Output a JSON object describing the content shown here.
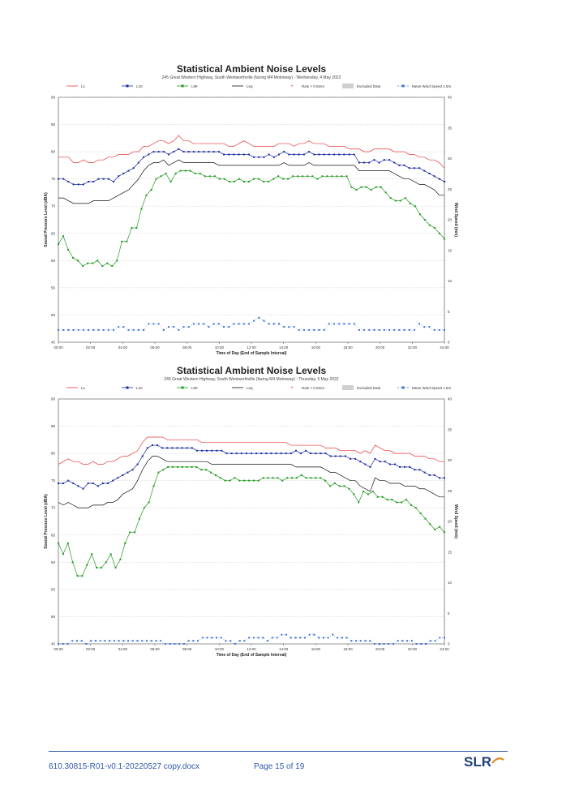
{
  "chart_data": [
    {
      "type": "line",
      "title": "Statistical Ambient Noise Levels",
      "subtitle": "245 Great Western Highway, South Wentworthville (facing M4 Motorway) - Wednesday, 4 May 2022",
      "xlabel": "Time of Day (End of Sample Interval)",
      "ylabel": "Sound Pressure Level (dBA)",
      "y2label": "Wind Speed (m/s)",
      "xticks": [
        "00:00",
        "02:00",
        "04:00",
        "06:00",
        "08:00",
        "10:00",
        "12:00",
        "14:00",
        "16:00",
        "18:00",
        "20:00",
        "22:00",
        "24:00"
      ],
      "ylim": [
        45,
        90
      ],
      "yticks": [
        45,
        50,
        55,
        60,
        65,
        70,
        75,
        80,
        85,
        90
      ],
      "y2lim": [
        0,
        40
      ],
      "y2ticks": [
        0,
        5,
        10,
        15,
        20,
        25,
        30,
        35,
        40
      ],
      "grid": true,
      "legend_position": "top",
      "legend": [
        {
          "label": "L1",
          "color": "#e8393b",
          "style": "line"
        },
        {
          "label": "L10",
          "color": "#1a2aa0",
          "style": "line-marker"
        },
        {
          "label": "L90",
          "color": "#1f9a1f",
          "style": "line-marker"
        },
        {
          "label": "Leq",
          "color": "#111111",
          "style": "line"
        },
        {
          "label": "Rain > 0.5mm",
          "color": "#e8393b",
          "style": "marker"
        },
        {
          "label": "Excluded Data",
          "color": "#cfcfcf",
          "style": "box"
        },
        {
          "label": "Mean Wind Speed 1.5m",
          "color": "#3b6fd8",
          "style": "dash-marker"
        }
      ],
      "series": [
        {
          "name": "L1",
          "color": "#e8393b",
          "values": [
            79,
            79,
            79,
            78,
            78,
            78.5,
            78,
            78,
            78.5,
            78.5,
            79,
            79,
            79.5,
            79.5,
            79.5,
            80,
            80,
            81,
            81,
            81.5,
            82,
            82,
            81.5,
            82,
            83,
            82,
            82,
            81.5,
            81.5,
            81.5,
            81.5,
            81.5,
            81.5,
            81.5,
            81,
            81,
            81.5,
            82,
            81.5,
            81,
            81,
            81,
            81,
            81,
            81.5,
            81.5,
            81.5,
            81,
            81.5,
            81.5,
            82,
            81.5,
            81.5,
            81.5,
            81,
            81,
            81,
            81,
            80.5,
            80.5,
            80.5,
            80,
            80,
            80.5,
            80.5,
            80.5,
            80.5,
            80,
            80,
            80,
            79.5,
            79.5,
            79,
            79,
            78.5,
            78.5,
            78,
            77
          ]
        },
        {
          "name": "L10",
          "color": "#1a2aa0",
          "values": [
            75,
            75,
            74.5,
            74,
            74,
            74,
            74.5,
            74.5,
            75,
            75,
            75,
            74.5,
            75.5,
            76,
            76.5,
            77,
            78,
            79,
            79.5,
            80,
            80,
            80,
            79.5,
            80,
            80.5,
            80,
            80,
            80,
            80,
            80,
            80,
            80,
            80,
            79.5,
            79.5,
            79.5,
            79.5,
            79.5,
            79.5,
            79,
            79,
            79,
            79.5,
            79,
            79.5,
            80,
            79.5,
            79.5,
            79.5,
            79.5,
            80,
            79.5,
            79.5,
            79.5,
            79.5,
            79.5,
            79.5,
            79.5,
            79.5,
            79.5,
            78,
            78,
            78,
            78.5,
            78,
            78.5,
            78.5,
            78,
            77.5,
            77.5,
            77,
            77,
            77,
            76.5,
            76,
            75.5,
            75,
            74.5
          ]
        },
        {
          "name": "Leq",
          "color": "#111111",
          "values": [
            71.5,
            71.5,
            71,
            70.5,
            70.5,
            70.5,
            70.5,
            71,
            71,
            71,
            71,
            71.5,
            72,
            72.5,
            73,
            74,
            75,
            76.5,
            77.5,
            78,
            78,
            78.5,
            77.5,
            78,
            78.5,
            78,
            78,
            78,
            78,
            78,
            78,
            78,
            77.5,
            77.5,
            77.5,
            77.5,
            77.5,
            77.5,
            77.5,
            77.5,
            77.5,
            77.5,
            77.5,
            77.5,
            77.5,
            78,
            77.5,
            77.5,
            77.5,
            77.5,
            78,
            77.5,
            77.5,
            77.5,
            77.5,
            77.5,
            77.5,
            77.5,
            77.5,
            77.5,
            76.5,
            76.5,
            76.5,
            76.5,
            76.5,
            76.5,
            76.5,
            76,
            75.5,
            75,
            75,
            74.5,
            74,
            74,
            73.5,
            73,
            72,
            72
          ]
        },
        {
          "name": "L90",
          "color": "#1f9a1f",
          "values": [
            63,
            64.5,
            62,
            60.5,
            60,
            59,
            59.5,
            59.5,
            60,
            59,
            59.5,
            59,
            60,
            63.5,
            63.5,
            66,
            66,
            69.5,
            72,
            73,
            75,
            75.5,
            76,
            74.5,
            76,
            76.5,
            76.5,
            76.5,
            76,
            76,
            75.5,
            75.5,
            75.5,
            75,
            75,
            74.5,
            74.5,
            75,
            74.5,
            74.5,
            75,
            75,
            74.5,
            74.5,
            75,
            75.5,
            75,
            75,
            75.5,
            75.5,
            75.5,
            75.5,
            75.5,
            75,
            75.5,
            75.5,
            75.5,
            75.5,
            75.5,
            75.5,
            73.5,
            73,
            73.5,
            73.5,
            73,
            73.5,
            73.5,
            72.5,
            71.5,
            71,
            71,
            71.5,
            70.5,
            70,
            68.5,
            67.5,
            66.5,
            66,
            65,
            64
          ]
        },
        {
          "name": "Mean Wind Speed 1.5m",
          "axis": "y2",
          "color": "#3b6fd8",
          "values": [
            2,
            2,
            2,
            2,
            2,
            2,
            2,
            2,
            2,
            2,
            2,
            2,
            2.5,
            2.5,
            2,
            2,
            2,
            2,
            3,
            3,
            3,
            2,
            2.5,
            2.5,
            2,
            2.5,
            2.5,
            3,
            3,
            3,
            2.5,
            3,
            3,
            2.5,
            2.5,
            3,
            3,
            3,
            3,
            3.5,
            4,
            3.5,
            3,
            3,
            3,
            2.5,
            2.5,
            2.5,
            2,
            2,
            2,
            2,
            2,
            2,
            3,
            3,
            3,
            3,
            3,
            3,
            2,
            2,
            2,
            2,
            2,
            2,
            2,
            2,
            2,
            2,
            2,
            2,
            3,
            2.5,
            2.5,
            2,
            2,
            2
          ]
        }
      ]
    },
    {
      "type": "line",
      "title": "Statistical Ambient Noise Levels",
      "subtitle": "245 Great Western Highway, South Wentworthville (facing M4 Motorway) - Thursday, 5 May 2022",
      "xlabel": "Time of Day (End of Sample Interval)",
      "ylabel": "Sound Pressure Level (dBA)",
      "y2label": "Wind Speed (m/s)",
      "xticks": [
        "00:00",
        "02:00",
        "04:00",
        "06:00",
        "08:00",
        "10:00",
        "12:00",
        "14:00",
        "16:00",
        "18:00",
        "20:00",
        "22:00",
        "24:00"
      ],
      "ylim": [
        45,
        90
      ],
      "yticks": [
        45,
        50,
        55,
        60,
        65,
        70,
        75,
        80,
        85,
        90
      ],
      "y2lim": [
        0,
        40
      ],
      "y2ticks": [
        0,
        5,
        10,
        15,
        20,
        25,
        30,
        35,
        40
      ],
      "grid": true,
      "legend_position": "top",
      "legend": [
        {
          "label": "L1",
          "color": "#e8393b",
          "style": "line"
        },
        {
          "label": "L10",
          "color": "#1a2aa0",
          "style": "line-marker"
        },
        {
          "label": "L90",
          "color": "#1f9a1f",
          "style": "line-marker"
        },
        {
          "label": "Leq",
          "color": "#111111",
          "style": "line"
        },
        {
          "label": "Rain > 0.5mm",
          "color": "#e8393b",
          "style": "marker"
        },
        {
          "label": "Excluded Data",
          "color": "#cfcfcf",
          "style": "box"
        },
        {
          "label": "Mean Wind Speed 1.5m",
          "color": "#3b6fd8",
          "style": "dash-marker"
        }
      ],
      "series": [
        {
          "name": "L1",
          "color": "#e8393b",
          "values": [
            78,
            78.5,
            79,
            78.5,
            78.5,
            78,
            78,
            78.5,
            78,
            78,
            78.5,
            78.5,
            79,
            79.5,
            79.5,
            80,
            80.5,
            82,
            83,
            83,
            83,
            83,
            82.5,
            82.5,
            82.5,
            82.5,
            82.5,
            82.5,
            82.5,
            82,
            82,
            82,
            82,
            82,
            82,
            82,
            82,
            82,
            82,
            82,
            82,
            82,
            82,
            82,
            82,
            82,
            82,
            81.5,
            81.5,
            81.5,
            81.5,
            81.5,
            81.5,
            81.5,
            81,
            81,
            81,
            80.5,
            80.5,
            80.5,
            80.5,
            80,
            80.5,
            80,
            81.5,
            81,
            80.5,
            80.5,
            80,
            80,
            80,
            80,
            79.5,
            79.5,
            79.5,
            79,
            79,
            78.5,
            78.5
          ]
        },
        {
          "name": "L10",
          "color": "#1a2aa0",
          "values": [
            74.5,
            74.5,
            75,
            74.5,
            74,
            73.5,
            74.5,
            74.5,
            74,
            74.5,
            74.5,
            75,
            75.5,
            76,
            76.5,
            77,
            78,
            79.5,
            81,
            81.5,
            81.5,
            81,
            81,
            81,
            81,
            81,
            81,
            81,
            80.5,
            80.5,
            80.5,
            80.5,
            80.5,
            80.5,
            80,
            80,
            80,
            80,
            80,
            80,
            80,
            80,
            80,
            80,
            80,
            80,
            80,
            80,
            80.5,
            80,
            80.5,
            80,
            80,
            80,
            80,
            79.5,
            79.5,
            79.5,
            79.5,
            79,
            79,
            78.5,
            78,
            77.5,
            79,
            78.5,
            78.5,
            78,
            78,
            77.5,
            77.5,
            77.5,
            77,
            77,
            76.5,
            76,
            76,
            75.5,
            75.5
          ]
        },
        {
          "name": "Leq",
          "color": "#111111",
          "values": [
            71,
            70.5,
            71,
            70.5,
            70,
            70,
            70,
            70.5,
            70.5,
            70.5,
            71,
            71,
            71.5,
            72.5,
            73,
            73.5,
            75,
            77,
            78.5,
            79.5,
            79.5,
            79,
            78.5,
            78.5,
            78.5,
            78.5,
            78.5,
            78.5,
            78.5,
            78.5,
            78.5,
            78,
            78,
            78,
            78,
            78,
            78,
            78,
            78,
            78,
            78,
            78,
            78,
            78,
            78,
            78,
            78,
            78,
            77.5,
            77.5,
            77.5,
            77.5,
            77.5,
            77.5,
            77,
            76.5,
            76.5,
            76,
            75.5,
            75,
            75,
            74,
            73.5,
            73,
            75.5,
            75,
            75,
            74.5,
            74.5,
            74.5,
            74,
            74,
            74,
            73.5,
            73.5,
            73,
            72.5,
            72,
            72
          ]
        },
        {
          "name": "L90",
          "color": "#1f9a1f",
          "values": [
            63.5,
            61.5,
            63.5,
            60,
            57.5,
            57.5,
            59.5,
            61.5,
            59,
            59,
            60,
            61.5,
            59,
            60.5,
            63.5,
            65.5,
            65.5,
            68,
            70,
            71,
            74,
            76.5,
            77,
            77.5,
            77.5,
            77.5,
            77.5,
            77.5,
            77.5,
            77.5,
            77,
            77,
            76.5,
            76,
            75.5,
            75,
            75,
            75.5,
            75,
            75,
            75,
            75,
            75,
            75.5,
            75.5,
            75.5,
            75.5,
            75,
            75.5,
            75.5,
            75.5,
            76,
            75.5,
            75.5,
            75.5,
            75.5,
            75,
            74,
            74.5,
            74,
            74,
            73.5,
            72.5,
            71,
            73,
            72.5,
            73,
            72,
            72,
            71.5,
            71.5,
            71,
            71,
            71.5,
            70.5,
            70,
            69,
            68,
            67,
            66,
            66.5,
            65.5
          ]
        },
        {
          "name": "Mean Wind Speed 1.5m",
          "axis": "y2",
          "color": "#3b6fd8",
          "values": [
            0,
            0,
            0,
            0.5,
            0.5,
            0.5,
            0,
            0.5,
            0.5,
            0.5,
            0.5,
            0.5,
            0.5,
            0.5,
            0.5,
            0.5,
            0.5,
            0.5,
            0.5,
            0.5,
            0.5,
            0.5,
            0.5,
            0,
            0,
            0,
            0,
            0,
            0.5,
            0.5,
            0.5,
            1,
            1,
            1,
            1,
            1,
            0.5,
            0.5,
            0,
            0.5,
            0.5,
            1,
            1,
            1,
            1,
            0.5,
            1,
            1,
            1.5,
            1.5,
            1,
            1,
            1,
            1,
            1.5,
            1.5,
            1,
            1,
            1,
            1.5,
            1,
            1,
            1,
            0.5,
            0.5,
            0.5,
            0.5,
            0.5,
            0,
            0,
            0,
            0,
            0,
            0.5,
            0.5,
            0.5,
            0.5,
            0,
            0,
            0,
            0.5,
            0.5,
            1,
            1
          ]
        }
      ]
    }
  ],
  "footer": {
    "doc_ref": "610.30815-R01-v0.1-20220527 copy.docx",
    "page": "Page 15 of 19",
    "logo": "SLR"
  }
}
